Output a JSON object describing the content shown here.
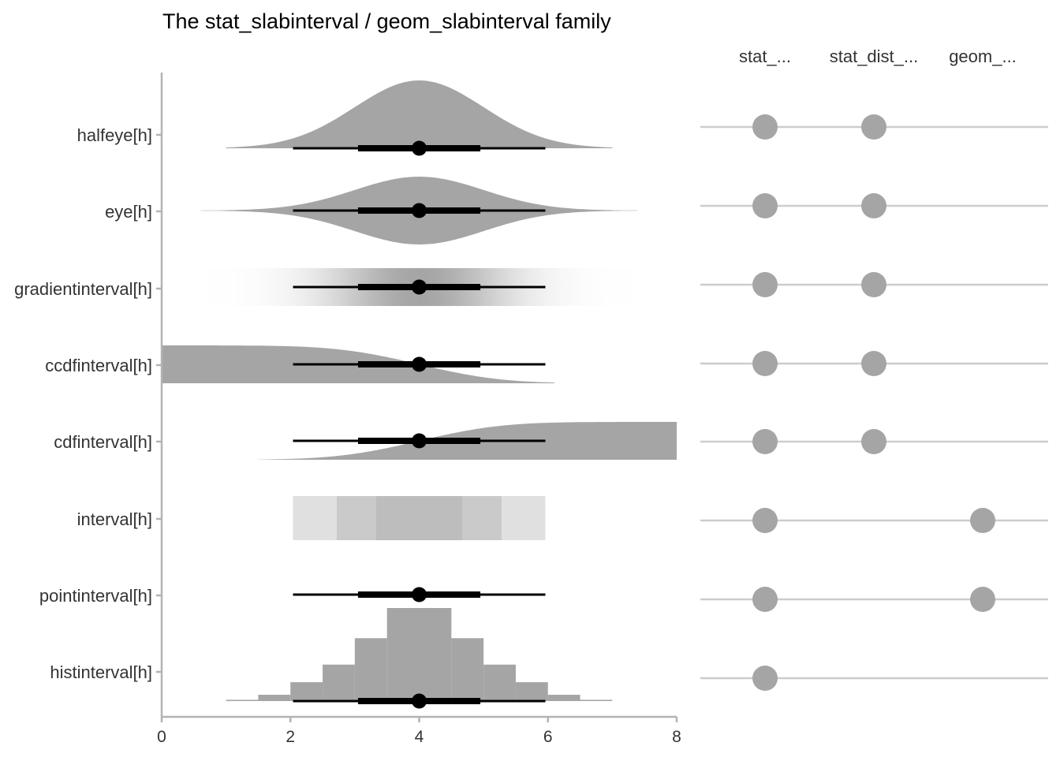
{
  "colors": {
    "slab": "#a5a5a5",
    "interval": "#000000",
    "axis": "#b3b3b3",
    "grid_line": "#cccccc",
    "dot": "#a5a5a5",
    "interval_band_outer": "#e0e0e0",
    "interval_band_middle": "#cacaca",
    "interval_band_inner": "#bdbdbd"
  },
  "chart_data": [
    {
      "type": "slabinterval",
      "title": "The stat_slabinterval / geom_slabinterval family",
      "xlabel": "",
      "ylabel": "",
      "xlim": [
        0,
        8
      ],
      "x_ticks": [
        "0",
        "2",
        "4",
        "6",
        "8"
      ],
      "x_tick_values": [
        0,
        2,
        4,
        6,
        8
      ],
      "distribution": {
        "mean": 4,
        "sd": 1
      },
      "point": 4,
      "interval_66": [
        3.05,
        4.95
      ],
      "interval_95": [
        2.04,
        5.96
      ],
      "categories": [
        "halfeye[h]",
        "eye[h]",
        "gradientinterval[h]",
        "ccdfinterval[h]",
        "cdfinterval[h]",
        "interval[h]",
        "pointinterval[h]",
        "histinterval[h]"
      ],
      "interval_bands": [
        {
          "level": "outer",
          "from": 2.04,
          "to": 5.96
        },
        {
          "level": "middle",
          "from": 2.72,
          "to": 5.28
        },
        {
          "level": "inner",
          "from": 3.33,
          "to": 4.67
        }
      ],
      "histogram": {
        "bin_edges": [
          1.0,
          1.5,
          2.0,
          2.5,
          3.0,
          3.5,
          4.0,
          4.5,
          5.0,
          5.5,
          6.0,
          6.5,
          7.0
        ],
        "densities": [
          0.01,
          0.05,
          0.15,
          0.29,
          0.5,
          0.74,
          0.74,
          0.5,
          0.29,
          0.15,
          0.05,
          0.01
        ]
      },
      "grid": false
    },
    {
      "type": "table",
      "columns": [
        "stat_...",
        "stat_dist_...",
        "geom_..."
      ],
      "rows": [
        {
          "name": "halfeye[h]",
          "stat": true,
          "stat_dist": true,
          "geom": false
        },
        {
          "name": "eye[h]",
          "stat": true,
          "stat_dist": true,
          "geom": false
        },
        {
          "name": "gradientinterval[h]",
          "stat": true,
          "stat_dist": true,
          "geom": false
        },
        {
          "name": "ccdfinterval[h]",
          "stat": true,
          "stat_dist": true,
          "geom": false
        },
        {
          "name": "cdfinterval[h]",
          "stat": true,
          "stat_dist": true,
          "geom": false
        },
        {
          "name": "interval[h]",
          "stat": true,
          "stat_dist": false,
          "geom": true
        },
        {
          "name": "pointinterval[h]",
          "stat": true,
          "stat_dist": false,
          "geom": true
        },
        {
          "name": "histinterval[h]",
          "stat": true,
          "stat_dist": false,
          "geom": false
        }
      ]
    }
  ]
}
